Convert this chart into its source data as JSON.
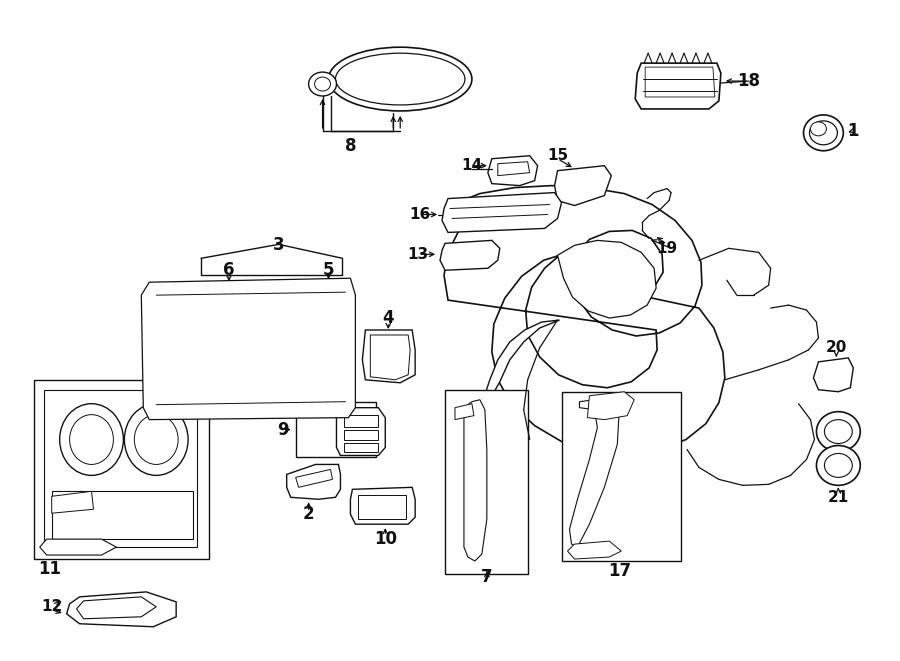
{
  "bg_color": "#ffffff",
  "line_color": "#111111",
  "fig_width": 9.0,
  "fig_height": 6.61,
  "dpi": 100
}
